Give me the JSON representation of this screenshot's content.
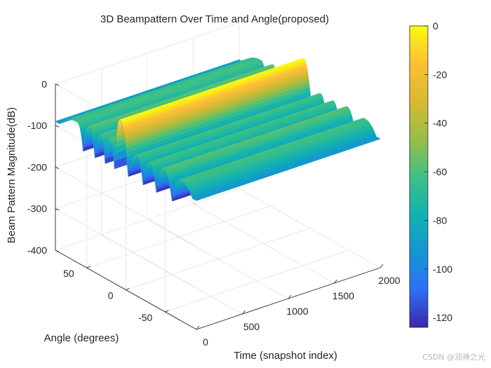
{
  "chart_data": {
    "type": "surface",
    "title": "3D Beampattern Over Time and Angle(proposed)",
    "xlabel": "Time (snapshot index)",
    "ylabel": "Angle (degrees)",
    "zlabel": "Beam Pattern Magnitude(dB)",
    "x_ticks": [
      "0",
      "500",
      "1000",
      "1500",
      "2000"
    ],
    "y_ticks": [
      "50",
      "0",
      "-50"
    ],
    "z_ticks": [
      "0",
      "-100",
      "-200",
      "-300",
      "-400"
    ],
    "xlim": [
      0,
      2000
    ],
    "ylim": [
      -90,
      90
    ],
    "zlim": [
      -400,
      0
    ],
    "grid": true,
    "colormap": "parula",
    "colorbar": {
      "ticks": [
        "0",
        "-20",
        "-40",
        "-60",
        "-80",
        "-100",
        "-120"
      ],
      "range": [
        -124,
        0
      ]
    },
    "lobe_angles_deg": [
      -70,
      -48,
      -30,
      -14,
      8,
      21,
      32,
      47,
      62
    ],
    "lobe_peaks_db": [
      -62,
      -57,
      -62,
      -62,
      0,
      -57,
      -60,
      -56,
      -62
    ],
    "main_lobe_angle_deg": 8,
    "null_depth_db": -124,
    "edge_level_db": -90,
    "snapshots": 2000
  },
  "watermark": "CSDN @润神之光"
}
